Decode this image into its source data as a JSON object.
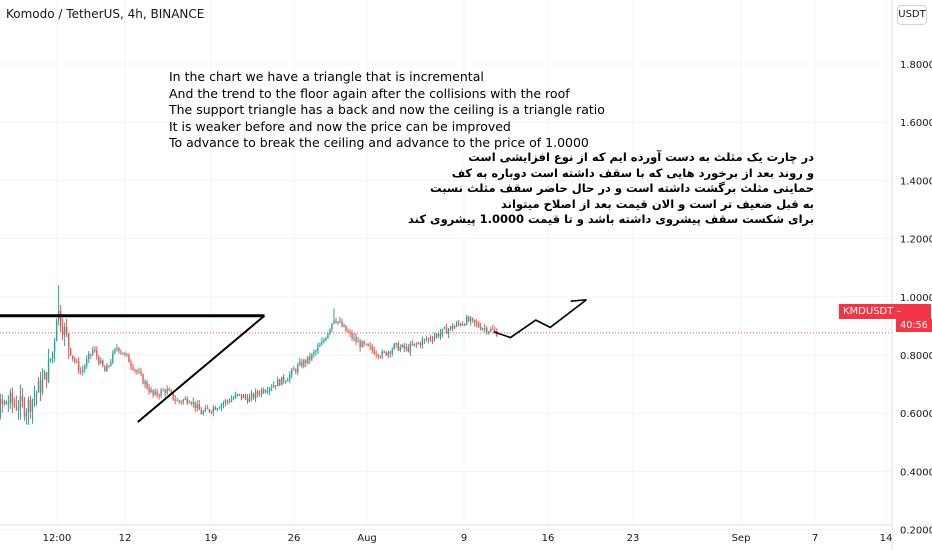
{
  "header": {
    "symbol_title": "Komodo / TetherUS, 4h, BINANCE"
  },
  "price_scale": {
    "currency_button": "USDT"
  },
  "last_price": {
    "label": "KMDUSDT",
    "value": "0.8763",
    "countdown": "40:56",
    "color": "#f23645"
  },
  "annotations": {
    "english": [
      "In the chart we have a triangle that is incremental",
      "And the trend to the floor again after the collisions with the roof",
      "The support triangle has a back and now the ceiling is a triangle ratio",
      "It is weaker before and now the price can be improved",
      "To advance to break the ceiling and advance to the price of 1.0000"
    ],
    "persian": [
      "در چارت یک مثلث به دست آورده ایم که از نوع افزایشی است",
      "و روند بعد از برخورد هایی که با سقف داشته است دوباره به کف",
      "حمایتی مثلث برگشت داشته است و در حال حاضر سقف مثلث نسبت",
      "به قبل ضعیف تر است و الان قیمت بعد از اصلاح میتواند",
      "برای شکست سقف پیشروی داشته باشد و تا قیمت 1.0000 پیشروی کند"
    ]
  },
  "colors": {
    "up": "#26a69a",
    "down": "#ef5350",
    "grid": "#f0f3fa",
    "drawing": "#000000"
  },
  "chart_data": {
    "type": "candlestick",
    "title": "Komodo / TetherUS, 4h, BINANCE",
    "y_ticks": [
      "0.2000",
      "0.4000",
      "0.6000",
      "0.8000",
      "1.0000",
      "1.2000",
      "1.4000",
      "1.6000",
      "1.8000"
    ],
    "x_ticks": [
      "12:00",
      "12",
      "19",
      "26",
      "Aug",
      "9",
      "16",
      "23",
      "Sep",
      "7",
      "14"
    ],
    "ylim": [
      0.13,
      2.02
    ],
    "xlim_days": [
      -7.2,
      66.4
    ],
    "grid": true,
    "price_path": [
      [
        -7.2,
        0.54
      ],
      [
        -5.5,
        0.6
      ],
      [
        -4,
        0.64
      ],
      [
        -2.5,
        0.62
      ],
      [
        -1,
        0.72
      ],
      [
        -0.3,
        0.82
      ],
      [
        0,
        0.96
      ],
      [
        0.5,
        0.9
      ],
      [
        1.2,
        0.8
      ],
      [
        2,
        0.74
      ],
      [
        3,
        0.82
      ],
      [
        4,
        0.74
      ],
      [
        5,
        0.83
      ],
      [
        6,
        0.78
      ],
      [
        7,
        0.72
      ],
      [
        8,
        0.66
      ],
      [
        9,
        0.68
      ],
      [
        10,
        0.64
      ],
      [
        11,
        0.65
      ],
      [
        12,
        0.6
      ],
      [
        13,
        0.62
      ],
      [
        14,
        0.64
      ],
      [
        15,
        0.66
      ],
      [
        16,
        0.65
      ],
      [
        17,
        0.68
      ],
      [
        18,
        0.7
      ],
      [
        19,
        0.72
      ],
      [
        20,
        0.76
      ],
      [
        21,
        0.79
      ],
      [
        22,
        0.84
      ],
      [
        23,
        0.93
      ],
      [
        24,
        0.88
      ],
      [
        25,
        0.84
      ],
      [
        26,
        0.82
      ],
      [
        27,
        0.8
      ],
      [
        28,
        0.83
      ],
      [
        29,
        0.82
      ],
      [
        30,
        0.84
      ],
      [
        31,
        0.86
      ],
      [
        32,
        0.88
      ],
      [
        33,
        0.9
      ],
      [
        34,
        0.92
      ],
      [
        35,
        0.9
      ],
      [
        36.5,
        0.8763
      ]
    ],
    "drawings": {
      "resistance": [
        [
          -9,
          0.935
        ],
        [
          17.2,
          0.935
        ]
      ],
      "support": [
        [
          6.7,
          0.57
        ],
        [
          17.2,
          0.935
        ]
      ],
      "projection": [
        [
          36.2,
          0.88
        ],
        [
          37.6,
          0.86
        ],
        [
          39.7,
          0.92
        ],
        [
          40.9,
          0.895
        ],
        [
          43.9,
          0.99
        ],
        [
          42.6,
          0.985
        ]
      ]
    }
  }
}
